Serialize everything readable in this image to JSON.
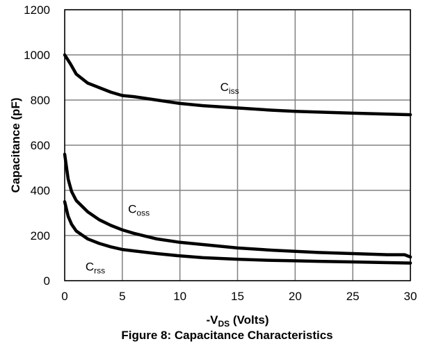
{
  "chart_data": {
    "type": "line",
    "caption": "Figure 8: Capacitance Characteristics",
    "ylabel": "Capacitance (pF)",
    "xlabel": {
      "prefix": "-V",
      "sub": "DS",
      "suffix": " (Volts)"
    },
    "xlim": [
      0,
      30
    ],
    "ylim": [
      0,
      1200
    ],
    "xticks": [
      0,
      5,
      10,
      15,
      20,
      25,
      30
    ],
    "yticks": [
      0,
      200,
      400,
      600,
      800,
      1000,
      1200
    ],
    "grid": true,
    "series": [
      {
        "name": {
          "main": "C",
          "sub": "iss"
        },
        "x": [
          0,
          0.5,
          1,
          2,
          3,
          4,
          5,
          6,
          8,
          10,
          12,
          15,
          18,
          20,
          25,
          30
        ],
        "y": [
          1000,
          960,
          915,
          875,
          855,
          835,
          820,
          815,
          800,
          785,
          775,
          765,
          755,
          750,
          742,
          735
        ]
      },
      {
        "name": {
          "main": "C",
          "sub": "oss"
        },
        "x": [
          0,
          0.3,
          0.6,
          1,
          2,
          3,
          4,
          5,
          6,
          8,
          10,
          12,
          15,
          18,
          20,
          22,
          25,
          28,
          29.5,
          30
        ],
        "y": [
          560,
          450,
          395,
          355,
          305,
          270,
          245,
          225,
          210,
          185,
          170,
          160,
          145,
          135,
          130,
          125,
          120,
          115,
          115,
          105
        ]
      },
      {
        "name": {
          "main": "C",
          "sub": "rss"
        },
        "x": [
          0,
          0.3,
          0.6,
          1,
          2,
          3,
          4,
          5,
          6,
          8,
          10,
          12,
          15,
          18,
          20,
          22,
          25,
          28,
          30
        ],
        "y": [
          350,
          285,
          250,
          220,
          185,
          165,
          150,
          138,
          132,
          120,
          110,
          102,
          95,
          90,
          88,
          86,
          83,
          80,
          78
        ]
      }
    ],
    "colors": {
      "line": "#000000",
      "grid": "#808080",
      "frame": "#000000"
    }
  }
}
